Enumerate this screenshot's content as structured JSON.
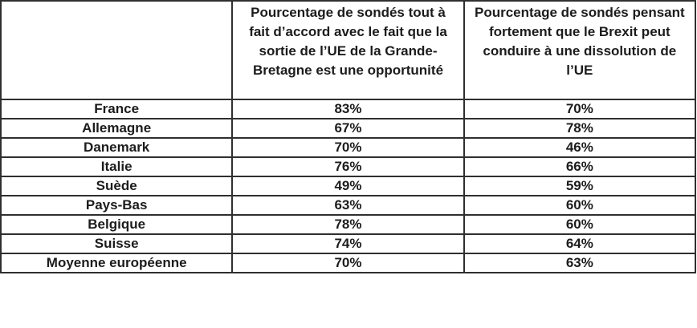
{
  "chart_data": {
    "type": "table",
    "title": "",
    "columns": [
      "",
      "Pourcentage de sondés tout à fait d’accord avec le fait que la sortie de l’UE de la Grande-Bretagne est une opportunité",
      "Pourcentage de sondés pensant fortement que le Brexit peut conduire à une dissolution de l’UE"
    ],
    "rows": [
      {
        "label": "France",
        "values": [
          "83%",
          "70%"
        ]
      },
      {
        "label": "Allemagne",
        "values": [
          "67%",
          "78%"
        ]
      },
      {
        "label": "Danemark",
        "values": [
          "70%",
          "46%"
        ]
      },
      {
        "label": "Italie",
        "values": [
          "76%",
          "66%"
        ]
      },
      {
        "label": "Suède",
        "values": [
          "49%",
          "59%"
        ]
      },
      {
        "label": "Pays-Bas",
        "values": [
          "63%",
          "60%"
        ]
      },
      {
        "label": "Belgique",
        "values": [
          "78%",
          "60%"
        ]
      },
      {
        "label": "Suisse",
        "values": [
          "74%",
          "64%"
        ]
      },
      {
        "label": "Moyenne européenne",
        "values": [
          "70%",
          "63%"
        ]
      }
    ]
  },
  "colors": {
    "border": "#2f2f2f",
    "text": "#1c1c1c",
    "background": "#ffffff"
  }
}
